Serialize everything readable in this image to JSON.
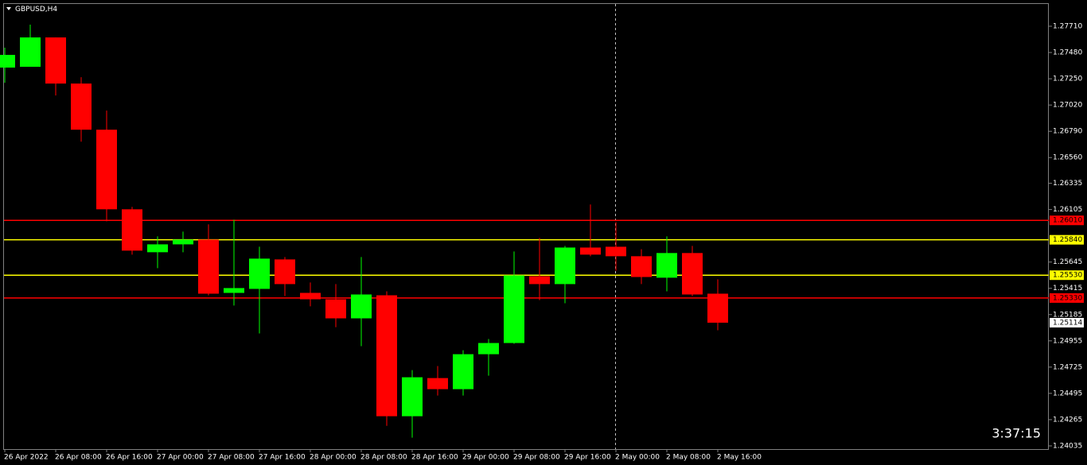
{
  "chart_data": {
    "type": "candlestick",
    "title": "GBPUSD,H4",
    "timer": "3:37:15",
    "categories": [
      "26 Apr 2022",
      null,
      "26 Apr 08:00",
      null,
      "26 Apr 16:00",
      null,
      "27 Apr 00:00",
      null,
      "27 Apr 08:00",
      null,
      "27 Apr 16:00",
      null,
      "28 Apr 00:00",
      null,
      "28 Apr 08:00",
      null,
      "28 Apr 16:00",
      null,
      "29 Apr 00:00",
      null,
      "29 Apr 08:00",
      null,
      "29 Apr 16:00",
      null,
      "2 May 00:00",
      null,
      "2 May 08:00",
      null,
      "2 May 16:00"
    ],
    "open": [
      1.27348,
      1.27355,
      1.27612,
      1.27208,
      1.26804,
      1.26107,
      1.25731,
      1.258,
      1.25842,
      1.25375,
      1.2541,
      1.25668,
      1.25375,
      1.25319,
      1.25152,
      1.25354,
      1.24295,
      1.24629,
      1.24532,
      1.24838,
      1.24936,
      1.25521,
      1.25452,
      1.25772,
      1.25779,
      1.25696,
      1.25508,
      1.25724,
      1.25368
    ],
    "high": [
      1.27522,
      1.27724,
      1.27612,
      1.27264,
      1.26971,
      1.26128,
      1.2587,
      1.25912,
      1.25975,
      1.26016,
      1.25779,
      1.25689,
      1.25466,
      1.25452,
      1.25689,
      1.25389,
      1.24699,
      1.24734,
      1.24873,
      1.24971,
      1.25738,
      1.25856,
      1.25786,
      1.26149,
      1.25995,
      1.25758,
      1.2587,
      1.25786,
      1.25494
    ],
    "low": [
      1.27215,
      1.27355,
      1.27104,
      1.26699,
      1.26002,
      1.2571,
      1.25591,
      1.25731,
      1.25354,
      1.25264,
      1.2502,
      1.25347,
      1.25257,
      1.25075,
      1.24908,
      1.24211,
      1.24107,
      1.24476,
      1.24476,
      1.2465,
      1.24929,
      1.25312,
      1.25284,
      1.25696,
      1.2557,
      1.25452,
      1.25389,
      1.25347,
      1.25048
    ],
    "close": [
      1.27459,
      1.27612,
      1.27208,
      1.26804,
      1.26107,
      1.25745,
      1.258,
      1.25842,
      1.25368,
      1.25417,
      1.25675,
      1.25452,
      1.25319,
      1.25152,
      1.25361,
      1.24295,
      1.24636,
      1.24532,
      1.24838,
      1.24936,
      1.25528,
      1.25452,
      1.25772,
      1.2571,
      1.25696,
      1.25514,
      1.25724,
      1.25361,
      1.25114
    ],
    "up_color": "#00ff00",
    "down_color": "#ff0000",
    "ylim": [
      1.24007,
      1.27905
    ],
    "yticks": [
      {
        "value": 1.2771,
        "label": "1.27710"
      },
      {
        "value": 1.2748,
        "label": "1.27480"
      },
      {
        "value": 1.2725,
        "label": "1.27250"
      },
      {
        "value": 1.2702,
        "label": "1.27020"
      },
      {
        "value": 1.2679,
        "label": "1.26790"
      },
      {
        "value": 1.2656,
        "label": "1.26560"
      },
      1.26335,
      1.26105,
      1.25645,
      1.25415,
      1.25185,
      1.24955,
      1.24725,
      1.24495,
      1.24265,
      1.24035
    ],
    "hlines": [
      {
        "value": 1.2601,
        "label": "1.26010",
        "color": "#ff0000"
      },
      {
        "value": 1.2584,
        "label": "1.25840",
        "color": "#ffff00"
      },
      {
        "value": 1.2553,
        "label": "1.25530",
        "color": "#ffff00"
      },
      {
        "value": 1.2533,
        "label": "1.25330",
        "color": "#ff0000"
      }
    ],
    "bid": 1.25114
  }
}
